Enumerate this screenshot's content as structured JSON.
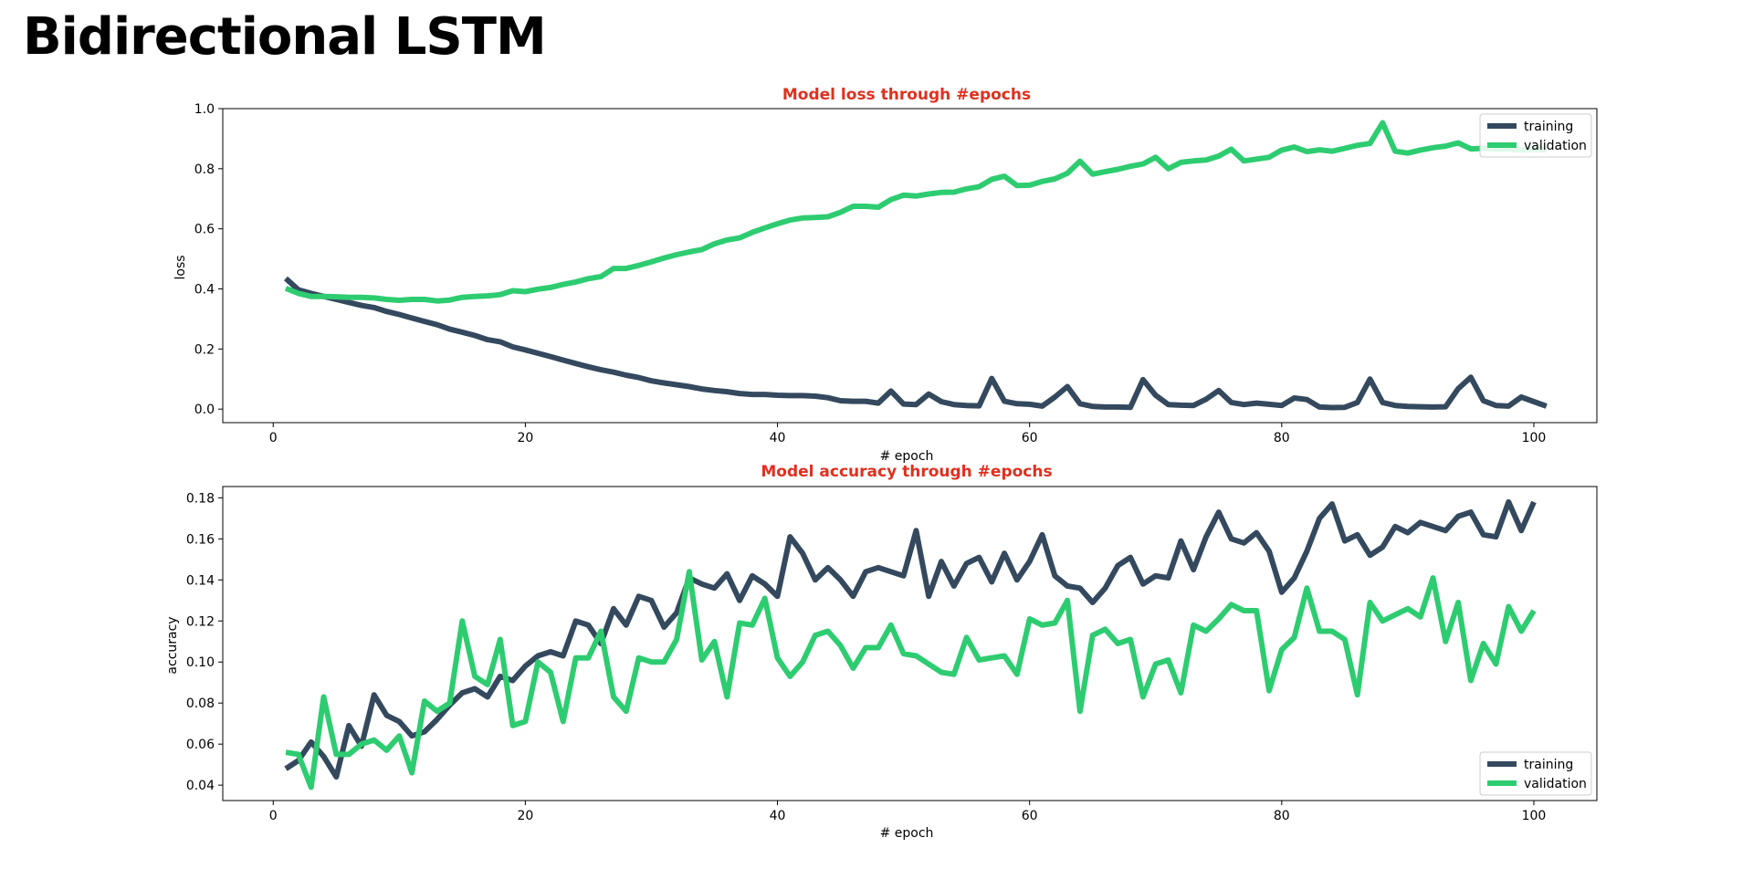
{
  "page": {
    "title": "Bidirectional LSTM"
  },
  "colors": {
    "training": "#34495e",
    "validation": "#2ecc71",
    "title": "#e0301e"
  },
  "chart_data": [
    {
      "type": "line",
      "title": "Model loss through #epochs",
      "xlabel": "# epoch",
      "ylabel": "loss",
      "xlim": [
        -4,
        105
      ],
      "ylim": [
        -0.045,
        1.0
      ],
      "xticks": [
        "0",
        "20",
        "40",
        "60",
        "80",
        "100"
      ],
      "yticks": [
        "0.0",
        "0.2",
        "0.4",
        "0.6",
        "0.8",
        "1.0"
      ],
      "legend": "top-right",
      "grid": false,
      "series": [
        {
          "name": "training",
          "values": [
            0.435,
            0.397,
            0.385,
            0.375,
            0.365,
            0.355,
            0.345,
            0.338,
            0.325,
            0.315,
            0.303,
            0.292,
            0.281,
            0.266,
            0.256,
            0.245,
            0.231,
            0.224,
            0.207,
            0.197,
            0.186,
            0.175,
            0.163,
            0.152,
            0.141,
            0.131,
            0.123,
            0.113,
            0.105,
            0.094,
            0.087,
            0.081,
            0.075,
            0.067,
            0.062,
            0.058,
            0.052,
            0.049,
            0.049,
            0.046,
            0.045,
            0.045,
            0.043,
            0.038,
            0.028,
            0.026,
            0.026,
            0.02,
            0.06,
            0.017,
            0.015,
            0.05,
            0.025,
            0.015,
            0.012,
            0.011,
            0.102,
            0.026,
            0.018,
            0.016,
            0.01,
            0.04,
            0.075,
            0.018,
            0.009,
            0.007,
            0.007,
            0.006,
            0.098,
            0.046,
            0.015,
            0.013,
            0.012,
            0.033,
            0.062,
            0.022,
            0.015,
            0.02,
            0.016,
            0.012,
            0.037,
            0.032,
            0.007,
            0.005,
            0.006,
            0.022,
            0.1,
            0.022,
            0.012,
            0.009,
            0.008,
            0.007,
            0.008,
            0.068,
            0.106,
            0.028,
            0.012,
            0.01,
            0.04,
            0.025,
            0.01
          ]
        },
        {
          "name": "validation",
          "values": [
            0.402,
            0.385,
            0.375,
            0.375,
            0.374,
            0.372,
            0.372,
            0.37,
            0.365,
            0.362,
            0.365,
            0.365,
            0.36,
            0.363,
            0.372,
            0.375,
            0.377,
            0.381,
            0.394,
            0.391,
            0.399,
            0.405,
            0.415,
            0.423,
            0.434,
            0.441,
            0.468,
            0.468,
            0.478,
            0.49,
            0.503,
            0.514,
            0.523,
            0.531,
            0.55,
            0.563,
            0.57,
            0.588,
            0.603,
            0.617,
            0.629,
            0.636,
            0.638,
            0.64,
            0.655,
            0.675,
            0.675,
            0.672,
            0.697,
            0.712,
            0.709,
            0.716,
            0.721,
            0.722,
            0.733,
            0.74,
            0.765,
            0.775,
            0.744,
            0.745,
            0.758,
            0.766,
            0.785,
            0.825,
            0.782,
            0.79,
            0.798,
            0.808,
            0.816,
            0.838,
            0.8,
            0.821,
            0.826,
            0.829,
            0.842,
            0.865,
            0.826,
            0.832,
            0.838,
            0.862,
            0.872,
            0.857,
            0.863,
            0.858,
            0.868,
            0.878,
            0.884,
            0.953,
            0.858,
            0.852,
            0.862,
            0.87,
            0.875,
            0.886,
            0.866,
            0.868,
            0.865,
            0.866,
            0.862,
            0.865,
            0.863
          ]
        }
      ]
    },
    {
      "type": "line",
      "title": "Model accuracy through #epochs",
      "xlabel": "# epoch",
      "ylabel": "accuracy",
      "xlim": [
        -4,
        105
      ],
      "ylim": [
        0.0325,
        0.1855
      ],
      "xticks": [
        "0",
        "20",
        "40",
        "60",
        "80",
        "100"
      ],
      "yticks": [
        "0.04",
        "0.06",
        "0.08",
        "0.10",
        "0.12",
        "0.14",
        "0.16",
        "0.18"
      ],
      "legend": "bottom-right",
      "grid": false,
      "series": [
        {
          "name": "training",
          "values": [
            0.048,
            0.052,
            0.061,
            0.054,
            0.044,
            0.069,
            0.059,
            0.084,
            0.074,
            0.071,
            0.064,
            0.066,
            0.072,
            0.079,
            0.085,
            0.087,
            0.083,
            0.093,
            0.091,
            0.098,
            0.103,
            0.105,
            0.103,
            0.12,
            0.118,
            0.109,
            0.126,
            0.118,
            0.132,
            0.13,
            0.117,
            0.124,
            0.141,
            0.138,
            0.136,
            0.143,
            0.13,
            0.142,
            0.138,
            0.132,
            0.161,
            0.153,
            0.14,
            0.146,
            0.14,
            0.132,
            0.144,
            0.146,
            0.144,
            0.142,
            0.164,
            0.132,
            0.149,
            0.137,
            0.148,
            0.151,
            0.139,
            0.153,
            0.14,
            0.149,
            0.162,
            0.142,
            0.137,
            0.136,
            0.129,
            0.136,
            0.147,
            0.151,
            0.138,
            0.142,
            0.141,
            0.159,
            0.145,
            0.161,
            0.173,
            0.16,
            0.158,
            0.163,
            0.154,
            0.134,
            0.141,
            0.154,
            0.17,
            0.177,
            0.159,
            0.162,
            0.152,
            0.156,
            0.166,
            0.163,
            0.168,
            0.166,
            0.164,
            0.171,
            0.173,
            0.162,
            0.161,
            0.178,
            0.164,
            0.178
          ]
        },
        {
          "name": "validation",
          "values": [
            0.056,
            0.055,
            0.039,
            0.083,
            0.055,
            0.055,
            0.06,
            0.062,
            0.057,
            0.064,
            0.046,
            0.081,
            0.076,
            0.08,
            0.12,
            0.093,
            0.089,
            0.111,
            0.069,
            0.071,
            0.1,
            0.095,
            0.071,
            0.102,
            0.102,
            0.115,
            0.083,
            0.076,
            0.102,
            0.1,
            0.1,
            0.111,
            0.144,
            0.101,
            0.11,
            0.083,
            0.119,
            0.118,
            0.131,
            0.102,
            0.093,
            0.1,
            0.113,
            0.115,
            0.108,
            0.097,
            0.107,
            0.107,
            0.118,
            0.104,
            0.103,
            0.099,
            0.095,
            0.094,
            0.112,
            0.101,
            0.102,
            0.103,
            0.094,
            0.121,
            0.118,
            0.119,
            0.13,
            0.076,
            0.113,
            0.116,
            0.109,
            0.111,
            0.083,
            0.099,
            0.101,
            0.085,
            0.118,
            0.115,
            0.121,
            0.128,
            0.125,
            0.125,
            0.086,
            0.106,
            0.112,
            0.136,
            0.115,
            0.115,
            0.111,
            0.084,
            0.129,
            0.12,
            0.123,
            0.126,
            0.122,
            0.141,
            0.11,
            0.129,
            0.091,
            0.109,
            0.099,
            0.127,
            0.115,
            0.125
          ]
        }
      ]
    }
  ]
}
